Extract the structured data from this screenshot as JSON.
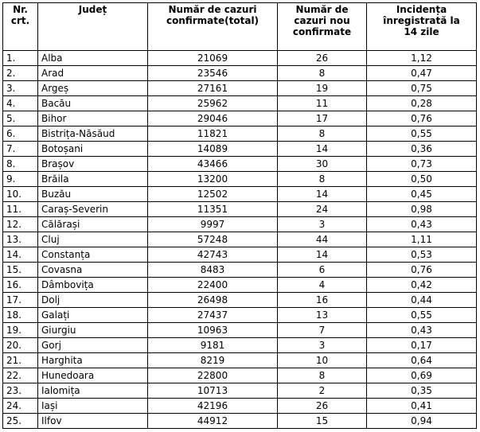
{
  "table": {
    "header": [
      [
        "Nr.",
        "crt."
      ],
      [
        "Județ"
      ],
      [
        "Număr de cazuri",
        "confirmate(total)"
      ],
      [
        "Număr de",
        "cazuri nou",
        "confirmate"
      ],
      [
        "Incidența",
        "înregistrată la",
        "14 zile"
      ]
    ],
    "rows": [
      [
        "1.",
        "Alba",
        "21069",
        "26",
        "1,12"
      ],
      [
        "2.",
        "Arad",
        "23546",
        "8",
        "0,47"
      ],
      [
        "3.",
        "Argeș",
        "27161",
        "19",
        "0,75"
      ],
      [
        "4.",
        "Bacău",
        "25962",
        "11",
        "0,28"
      ],
      [
        "5.",
        "Bihor",
        "29046",
        "17",
        "0,76"
      ],
      [
        "6.",
        "Bistrița-Năsăud",
        "11821",
        "8",
        "0,55"
      ],
      [
        "7.",
        "Botoșani",
        "14089",
        "14",
        "0,36"
      ],
      [
        "8.",
        "Brașov",
        "43466",
        "30",
        "0,73"
      ],
      [
        "9.",
        "Brăila",
        "13200",
        "8",
        "0,50"
      ],
      [
        "10.",
        "Buzău",
        "12502",
        "14",
        "0,45"
      ],
      [
        "11.",
        "Caraș-Severin",
        "11351",
        "24",
        "0,98"
      ],
      [
        "12.",
        "Călărași",
        "9997",
        "3",
        "0,43"
      ],
      [
        "13.",
        "Cluj",
        "57248",
        "44",
        "1,11"
      ],
      [
        "14.",
        "Constanța",
        "42743",
        "14",
        "0,53"
      ],
      [
        "15.",
        "Covasna",
        "8483",
        "6",
        "0,76"
      ],
      [
        "16.",
        "Dâmbovița",
        "22400",
        "4",
        "0,42"
      ],
      [
        "17.",
        "Dolj",
        "26498",
        "16",
        "0,44"
      ],
      [
        "18.",
        "Galați",
        "27437",
        "13",
        "0,55"
      ],
      [
        "19.",
        "Giurgiu",
        "10963",
        "7",
        "0,43"
      ],
      [
        "20.",
        "Gorj",
        "9181",
        "3",
        "0,17"
      ],
      [
        "21.",
        "Harghita",
        "8219",
        "10",
        "0,64"
      ],
      [
        "22.",
        "Hunedoara",
        "22800",
        "8",
        "0,69"
      ],
      [
        "23.",
        "Ialomița",
        "10713",
        "2",
        "0,35"
      ],
      [
        "24.",
        "Iași",
        "42196",
        "26",
        "0,41"
      ],
      [
        "25.",
        "Ilfov",
        "44912",
        "15",
        "0,94"
      ]
    ]
  }
}
